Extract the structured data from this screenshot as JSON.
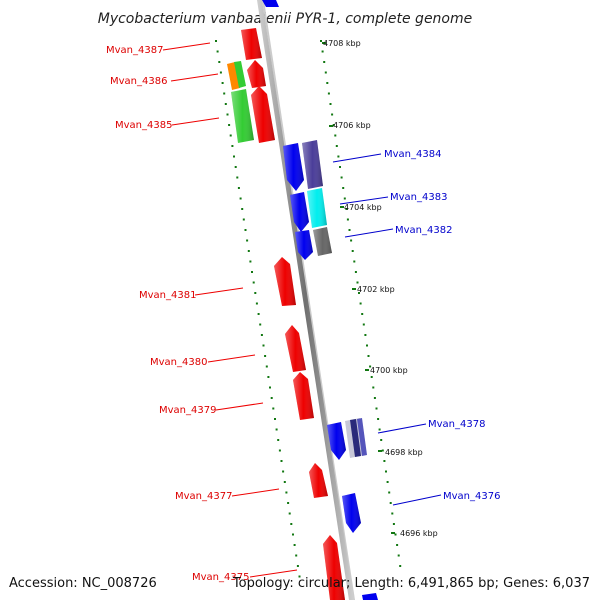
{
  "title": "Mycobacterium vanbaalenii PYR-1, complete genome",
  "footer": {
    "accession": "Accession: NC_008726",
    "info": "Topology: circular; Length: 6,491,865 bp; Genes: 6,037"
  },
  "colors": {
    "forward_label": "#dd0000",
    "reverse_label": "#0000cc",
    "gene_red": "#ee0000",
    "gene_blue": "#0000ee",
    "gene_green": "#33cc33",
    "gene_orange": "#ff8800",
    "gene_purple": "#4a3d99",
    "gene_cyan": "#00eeee",
    "gene_gray": "#666666",
    "tick": "#117711"
  },
  "ticks": [
    {
      "label": "4708 kbp"
    },
    {
      "label": "4706 kbp"
    },
    {
      "label": "4704 kbp"
    },
    {
      "label": "4702 kbp"
    },
    {
      "label": "4700 kbp"
    },
    {
      "label": "4698 kbp"
    },
    {
      "label": "4696 kbp"
    }
  ],
  "forward_genes": [
    {
      "label": "Mvan_4387"
    },
    {
      "label": "Mvan_4386"
    },
    {
      "label": "Mvan_4385"
    },
    {
      "label": "Mvan_4381"
    },
    {
      "label": "Mvan_4380"
    },
    {
      "label": "Mvan_4379"
    },
    {
      "label": "Mvan_4377"
    },
    {
      "label": "Mvan_4375"
    }
  ],
  "reverse_genes": [
    {
      "label": "Mvan_4384"
    },
    {
      "label": "Mvan_4383"
    },
    {
      "label": "Mvan_4382"
    },
    {
      "label": "Mvan_4378"
    },
    {
      "label": "Mvan_4376"
    }
  ]
}
